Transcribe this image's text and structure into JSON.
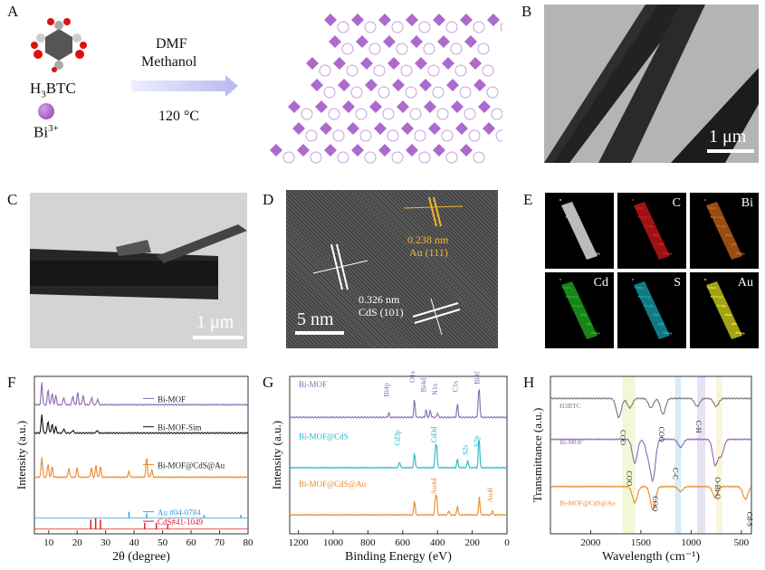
{
  "panels": {
    "A": {
      "label": "A",
      "precursor": "H3BTC",
      "precursor_main": "H",
      "precursor_sub": "3",
      "precursor_tail": "BTC",
      "metal": "Bi",
      "metal_charge": "3+",
      "solvent_1": "DMF",
      "solvent_2": "Methanol",
      "temperature": "120 °C"
    },
    "B": {
      "label": "B",
      "scale": "1 μm"
    },
    "C": {
      "label": "C",
      "scale": "1 μm"
    },
    "D": {
      "label": "D",
      "scale": "5 nm",
      "fringe_au_spacing": "0.238 nm",
      "fringe_au_plane": "Au (111)",
      "fringe_cds_spacing": "0.326 nm",
      "fringe_cds_plane": "CdS (101)"
    },
    "E": {
      "label": "E",
      "maps": [
        "",
        "C",
        "Bi",
        "Cd",
        "S",
        "Au"
      ],
      "colors": [
        "#bbbbbb",
        "#d11a1a",
        "#c8661a",
        "#22b022",
        "#1aa3b0",
        "#d8d820"
      ]
    },
    "F": {
      "label": "F"
    },
    "G": {
      "label": "G"
    },
    "H": {
      "label": "H"
    }
  },
  "chart_data": [
    {
      "panel": "F",
      "type": "line",
      "title": "",
      "xlabel": "2θ (degree)",
      "ylabel": "Intensity (a.u.)",
      "xlim": [
        5,
        80
      ],
      "xticks": [
        10,
        20,
        30,
        40,
        50,
        60,
        70,
        80
      ],
      "yticks": [],
      "series": [
        {
          "name": "Bi-MOF",
          "color": "#8a6ab0",
          "offset": 0.82,
          "peaks": [
            [
              7.6,
              0.14
            ],
            [
              9.8,
              0.1
            ],
            [
              11.2,
              0.08
            ],
            [
              12.5,
              0.06
            ],
            [
              15.3,
              0.05
            ],
            [
              18.5,
              0.06
            ],
            [
              20.2,
              0.08
            ],
            [
              22.1,
              0.06
            ],
            [
              25.1,
              0.05
            ],
            [
              27.2,
              0.04
            ]
          ]
        },
        {
          "name": "Bi-MOF-Sim",
          "color": "#111111",
          "offset": 0.64,
          "peaks": [
            [
              7.6,
              0.12
            ],
            [
              9.8,
              0.08
            ],
            [
              11.2,
              0.06
            ],
            [
              12.5,
              0.04
            ],
            [
              15.3,
              0.03
            ],
            [
              18.5,
              0.02
            ],
            [
              27.0,
              0.02
            ]
          ]
        },
        {
          "name": "Bi-MOF@CdS@Au",
          "color": "#e8892a",
          "offset": 0.36,
          "peaks": [
            [
              7.6,
              0.13
            ],
            [
              9.8,
              0.09
            ],
            [
              11.2,
              0.07
            ],
            [
              17.1,
              0.06
            ],
            [
              20.0,
              0.06
            ],
            [
              25.0,
              0.06
            ],
            [
              26.6,
              0.08
            ],
            [
              28.2,
              0.07
            ],
            [
              38.2,
              0.04
            ],
            [
              44.4,
              0.13
            ],
            [
              46.2,
              0.05
            ]
          ]
        },
        {
          "name": "Au  #04-0784",
          "color": "#3aa0e0",
          "type": "sticks",
          "base": 0.1,
          "sticks": [
            [
              38.2,
              0.04
            ],
            [
              44.4,
              0.03
            ],
            [
              64.6,
              0.02
            ],
            [
              77.5,
              0.02
            ]
          ]
        },
        {
          "name": "CdS#41-1049",
          "color": "#e02020",
          "type": "sticks",
          "base": 0.03,
          "sticks": [
            [
              24.8,
              0.06
            ],
            [
              26.5,
              0.07
            ],
            [
              28.2,
              0.06
            ],
            [
              43.7,
              0.04
            ],
            [
              47.8,
              0.04
            ],
            [
              51.8,
              0.03
            ]
          ]
        }
      ]
    },
    {
      "panel": "G",
      "type": "line",
      "title": "",
      "xlabel": "Binding Energy (eV)",
      "ylabel": "Intensity (a.u.)",
      "xlim": [
        1250,
        0
      ],
      "xticks": [
        1200,
        1000,
        800,
        600,
        400,
        200,
        0
      ],
      "yticks": [],
      "series": [
        {
          "name": "Bi-MOF",
          "color": "#8a6ab0",
          "offset": 0.74,
          "peaks": [
            [
              680,
              0.03
            ],
            [
              532,
              0.12
            ],
            [
              465,
              0.05
            ],
            [
              441,
              0.05
            ],
            [
              400,
              0.03
            ],
            [
              285,
              0.09
            ],
            [
              159,
              0.14
            ],
            [
              164,
              0.1
            ]
          ]
        },
        {
          "name": "Bi-MOF@CdS",
          "color": "#22b8c8",
          "offset": 0.42,
          "peaks": [
            [
              618,
              0.04
            ],
            [
              532,
              0.1
            ],
            [
              405,
              0.14
            ],
            [
              412,
              0.1
            ],
            [
              285,
              0.06
            ],
            [
              226,
              0.05
            ],
            [
              162,
              0.12
            ],
            [
              159,
              0.1
            ]
          ]
        },
        {
          "name": "Bi-MOF@CdS@Au",
          "color": "#e8892a",
          "offset": 0.12,
          "peaks": [
            [
              532,
              0.1
            ],
            [
              405,
              0.12
            ],
            [
              412,
              0.09
            ],
            [
              335,
              0.03
            ],
            [
              285,
              0.06
            ],
            [
              159,
              0.12
            ],
            [
              84,
              0.03
            ]
          ]
        }
      ],
      "peak_labels": [
        "Bi4p",
        "O1s",
        "Bi4d",
        "N1s",
        "C1s",
        "Bi4f",
        "Cd3p",
        "Cd3d",
        "S2s",
        "S2p",
        "Au4d",
        "Au4f"
      ]
    },
    {
      "panel": "H",
      "type": "line",
      "title": "",
      "xlabel": "Wavelength (cm⁻¹)",
      "ylabel": "Transmittance (a.u.)",
      "xlim": [
        2400,
        400
      ],
      "xticks": [
        2000,
        1500,
        1000,
        500
      ],
      "yticks": [],
      "series": [
        {
          "name": "H3BTC",
          "color": "#777777",
          "offset": 0.86,
          "dips": [
            [
              1720,
              0.12
            ],
            [
              1610,
              0.06
            ],
            [
              1400,
              0.06
            ],
            [
              1280,
              0.1
            ],
            [
              940,
              0.05
            ],
            [
              750,
              0.05
            ]
          ]
        },
        {
          "name": "Bi-MOF",
          "color": "#8a6ab0",
          "offset": 0.6,
          "dips": [
            [
              1560,
              0.15
            ],
            [
              1430,
              0.09
            ],
            [
              1380,
              0.25
            ],
            [
              1105,
              0.05
            ],
            [
              760,
              0.16
            ],
            [
              700,
              0.1
            ]
          ]
        },
        {
          "name": "Bi-MOF@CdS@Au",
          "color": "#e8892a",
          "offset": 0.3,
          "dips": [
            [
              1560,
              0.1
            ],
            [
              1380,
              0.15
            ],
            [
              1105,
              0.03
            ],
            [
              760,
              0.07
            ],
            [
              460,
              0.08
            ]
          ]
        }
      ],
      "annotations": [
        "COO",
        "COO",
        "C-H",
        "COO",
        "COO",
        "C-C",
        "O-Bi-O",
        "Cd-S"
      ],
      "bands": [
        {
          "center": 1620,
          "width": 130,
          "color": "#f0f8d8"
        },
        {
          "center": 1130,
          "width": 60,
          "color": "#d8ecf8"
        },
        {
          "center": 900,
          "width": 80,
          "color": "#e8e0f4"
        },
        {
          "center": 720,
          "width": 60,
          "color": "#fbf4d8"
        }
      ]
    }
  ]
}
